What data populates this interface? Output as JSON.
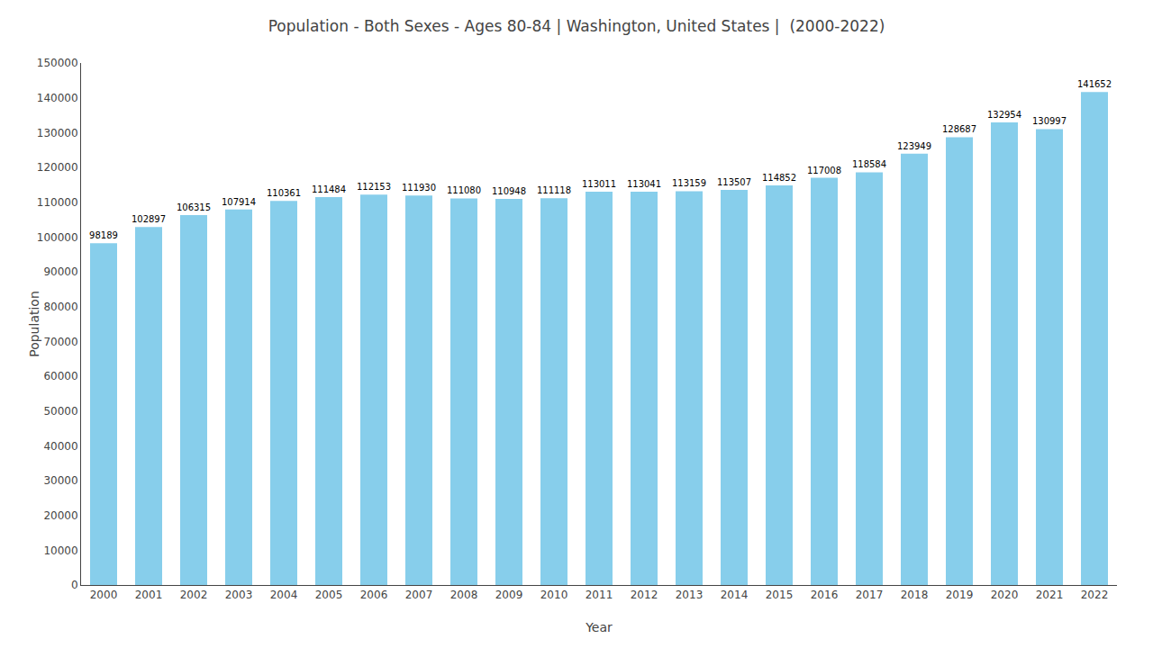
{
  "chart_data": {
    "type": "bar",
    "title": "Population - Both Sexes - Ages 80-84 | Washington, United States |  (2000-2022)",
    "xlabel": "Year",
    "ylabel": "Population",
    "categories": [
      "2000",
      "2001",
      "2002",
      "2003",
      "2004",
      "2005",
      "2006",
      "2007",
      "2008",
      "2009",
      "2010",
      "2011",
      "2012",
      "2013",
      "2014",
      "2015",
      "2016",
      "2017",
      "2018",
      "2019",
      "2020",
      "2021",
      "2022"
    ],
    "values": [
      98189,
      102897,
      106315,
      107914,
      110361,
      111484,
      112153,
      111930,
      111080,
      110948,
      111118,
      113011,
      113041,
      113159,
      113507,
      114852,
      117008,
      118584,
      123949,
      128687,
      132954,
      130997,
      141652
    ],
    "color": "#87CEEB",
    "ylim": [
      0,
      150000
    ],
    "yticks": [
      0,
      10000,
      20000,
      30000,
      40000,
      50000,
      60000,
      70000,
      80000,
      90000,
      100000,
      110000,
      120000,
      130000,
      140000,
      150000
    ],
    "grid": false,
    "data_labels": true
  }
}
